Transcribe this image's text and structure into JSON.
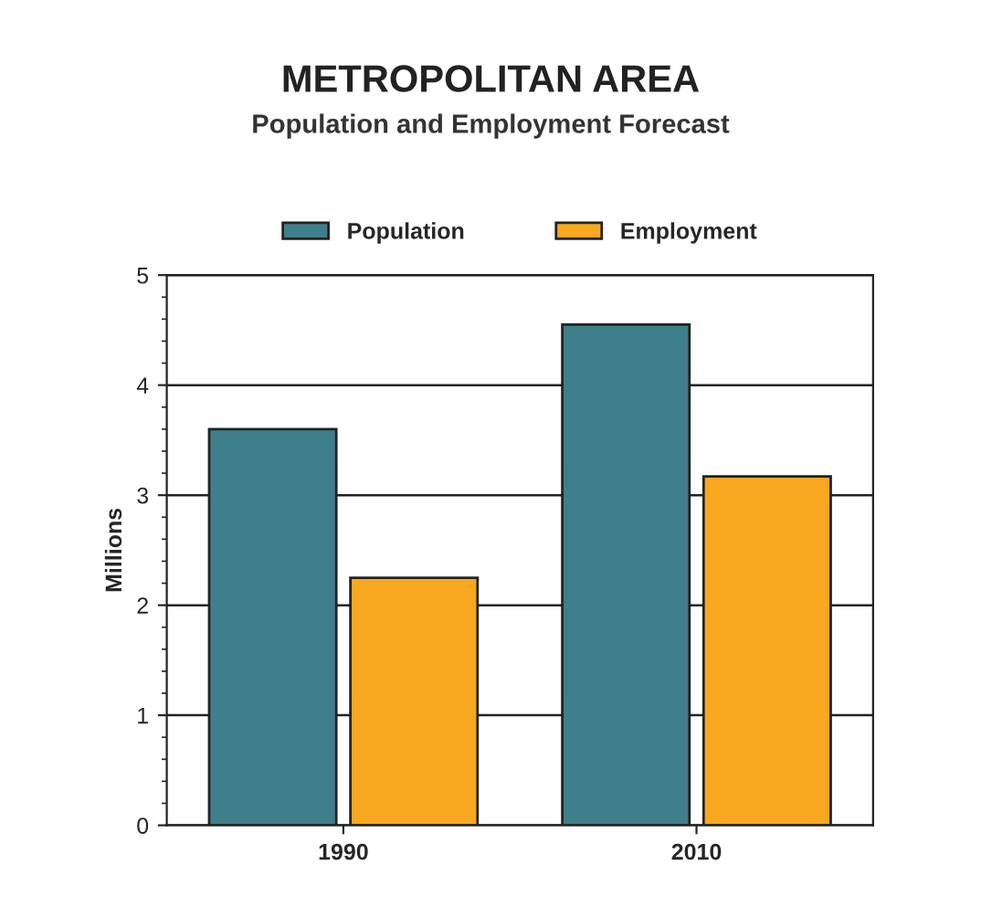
{
  "chart_data": {
    "type": "bar",
    "title": "METROPOLITAN AREA",
    "subtitle": "Population and Employment Forecast",
    "ylabel": "Millions",
    "categories": [
      "1990",
      "2010"
    ],
    "series": [
      {
        "name": "Population",
        "color": "#3f7f8a",
        "values": [
          3.6,
          4.55
        ]
      },
      {
        "name": "Employment",
        "color": "#f7a81e",
        "values": [
          2.25,
          3.17
        ]
      }
    ],
    "ylim": [
      0,
      5
    ],
    "yticks": [
      0,
      1,
      2,
      3,
      4,
      5
    ],
    "grid": "y",
    "legend": "top"
  }
}
